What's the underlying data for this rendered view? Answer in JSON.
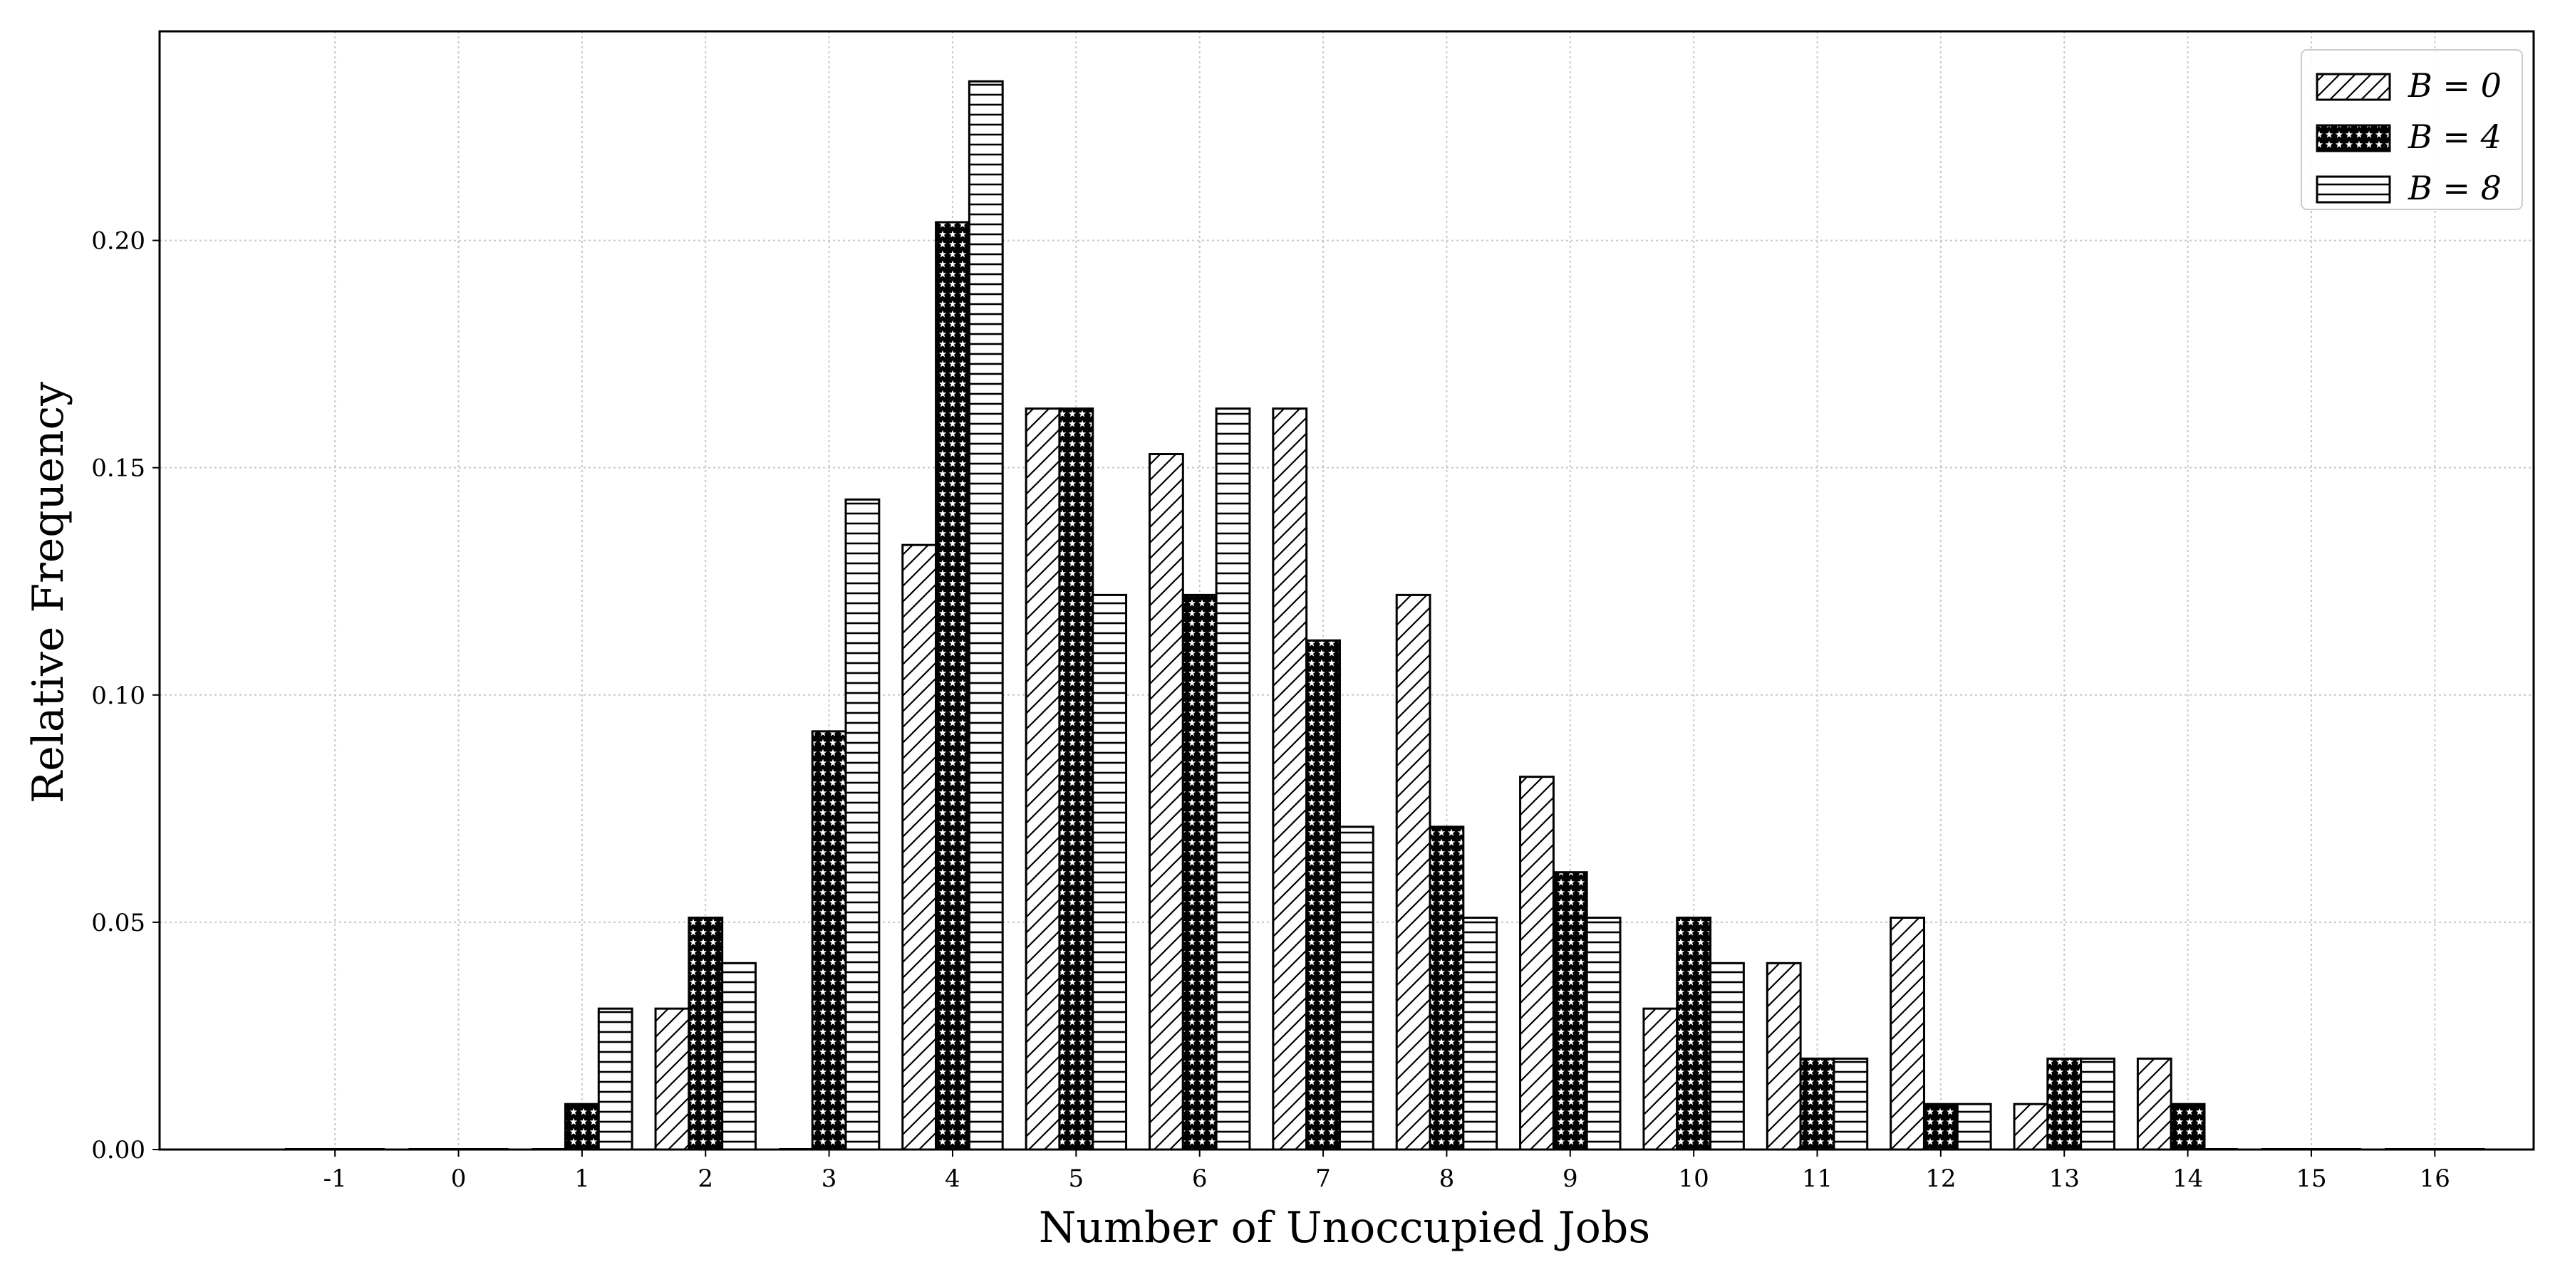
{
  "chart_data": {
    "type": "bar",
    "xlabel": "Number of Unoccupied Jobs",
    "ylabel": "Relative Frequency",
    "categories": [
      "-1",
      "0",
      "1",
      "2",
      "3",
      "4",
      "5",
      "6",
      "7",
      "8",
      "9",
      "10",
      "11",
      "12",
      "13",
      "14",
      "15",
      "16"
    ],
    "series": [
      {
        "name": "B = 0",
        "pattern": "diagonal",
        "values": [
          0,
          0,
          0,
          0.031,
          0,
          0.133,
          0.163,
          0.153,
          0.163,
          0.122,
          0.082,
          0.031,
          0.041,
          0.051,
          0.01,
          0.02,
          0,
          0
        ]
      },
      {
        "name": "B = 4",
        "pattern": "stars",
        "values": [
          0,
          0,
          0.01,
          0.051,
          0.092,
          0.204,
          0.163,
          0.122,
          0.112,
          0.071,
          0.061,
          0.051,
          0.02,
          0.01,
          0.02,
          0.01,
          0,
          0
        ]
      },
      {
        "name": "B = 8",
        "pattern": "horizontal",
        "values": [
          0,
          0,
          0.031,
          0.041,
          0.143,
          0.235,
          0.122,
          0.163,
          0.071,
          0.051,
          0.051,
          0.041,
          0.02,
          0.01,
          0.02,
          0,
          0,
          0
        ]
      }
    ],
    "xlim": [
      -2.42,
      16.8
    ],
    "ylim": [
      0,
      0.246
    ],
    "yticks": [
      "0.00",
      "0.05",
      "0.10",
      "0.15",
      "0.20"
    ],
    "grid": true,
    "legend_position": "top-right"
  }
}
